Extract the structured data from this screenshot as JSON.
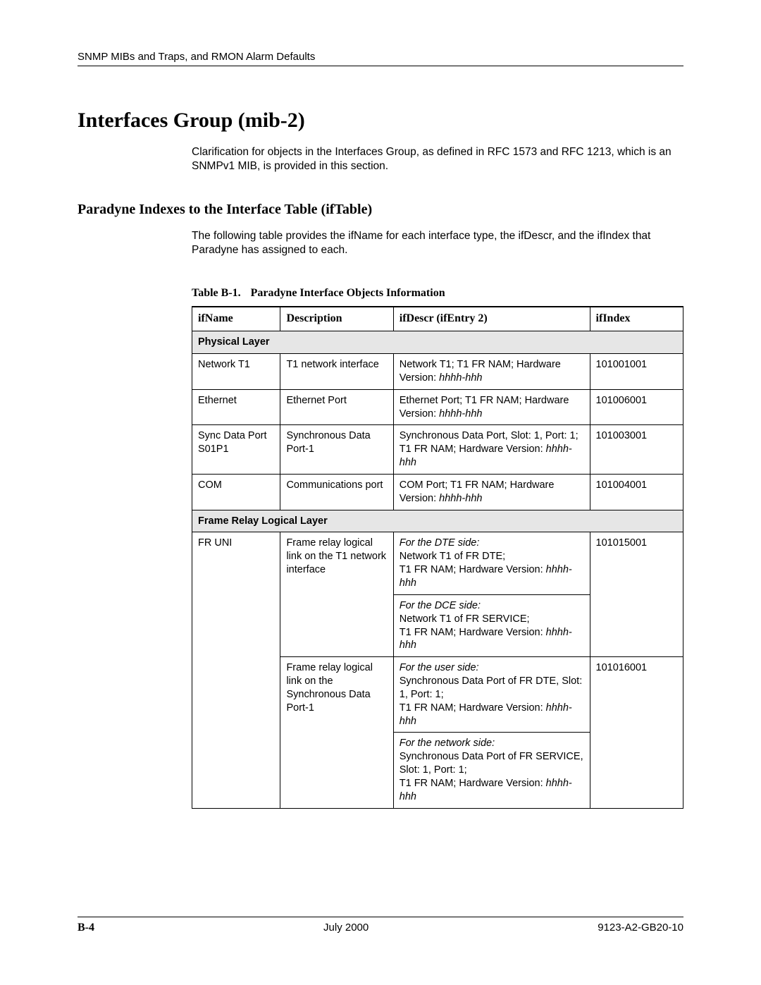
{
  "runningHeader": "SNMP MIBs and Traps, and RMON Alarm Defaults",
  "h1": "Interfaces Group (mib-2)",
  "intro": "Clarification for objects in the Interfaces Group, as defined in RFC 1573 and RFC 1213, which is an SNMPv1 MIB, is provided in this section.",
  "h2": "Paradyne Indexes to the Interface Table (ifTable)",
  "subIntro": "The following table provides the ifName for each interface type, the ifDescr, and the ifIndex that Paradyne has assigned to each.",
  "tableCaptionNum": "Table B-1.",
  "tableCaptionTitle": "Paradyne Interface Objects Information",
  "columns": {
    "c1": "ifName",
    "c2": "Description",
    "c3": "ifDescr (ifEntry 2)",
    "c4": "ifIndex"
  },
  "section1": "Physical Layer",
  "rows1": {
    "r0": {
      "ifName": "Network T1",
      "desc": "T1 network interface",
      "descrA": "Network T1; T1 FR NAM; Hardware Version: ",
      "descrItalic": "hhhh-hhh",
      "ifIndex": "101001001"
    },
    "r1": {
      "ifName": "Ethernet",
      "desc": "Ethernet Port",
      "descrA": "Ethernet Port; T1 FR NAM; Hardware Version: ",
      "descrItalic": "hhhh-hhh",
      "ifIndex": "101006001"
    },
    "r2": {
      "ifName": "Sync Data Port S01P1",
      "desc": "Synchronous Data Port-1",
      "descrA": "Synchronous Data Port, Slot: 1, Port: 1; T1 FR NAM; Hardware Version: ",
      "descrItalic": "hhhh-hhh",
      "ifIndex": "101003001"
    },
    "r3": {
      "ifName": "COM",
      "desc": "Communications port",
      "descrA": "COM Port; T1 FR NAM; Hardware Version: ",
      "descrItalic": "hhhh-hhh",
      "ifIndex": "101004001"
    }
  },
  "section2": "Frame Relay Logical Layer",
  "rows2": {
    "g0": {
      "ifName": "FR UNI",
      "desc0": "Frame relay logical link on the T1 network interface",
      "d0headItalic": "For the DTE side:",
      "d0bodyA": "Network T1 of FR DTE;",
      "d0bodyB": "T1 FR NAM; Hardware Version: ",
      "d0italic": "hhhh-hhh",
      "d1headItalic": "For the DCE side:",
      "d1bodyA": "Network T1 of FR SERVICE;",
      "d1bodyB": "T1 FR NAM; Hardware Version: ",
      "d1italic": "hhhh-hhh",
      "ifIndex0": "101015001",
      "desc1": "Frame relay logical link on the Synchronous Data Port-1",
      "d2headItalic": "For the user side:",
      "d2bodyA": "Synchronous Data Port of FR DTE, Slot: 1, Port: 1;",
      "d2bodyB": "T1 FR NAM; Hardware Version: ",
      "d2italic": "hhhh-hhh",
      "d3headItalic": "For the network side:",
      "d3bodyA": "Synchronous Data Port of FR SERVICE, Slot: 1, Port: 1;",
      "d3bodyB": "T1 FR NAM; Hardware Version: ",
      "d3italic": "hhhh-hhh",
      "ifIndex1": "101016001"
    }
  },
  "footer": {
    "left": "B-4",
    "center": "July 2000",
    "right": "9123-A2-GB20-10"
  }
}
